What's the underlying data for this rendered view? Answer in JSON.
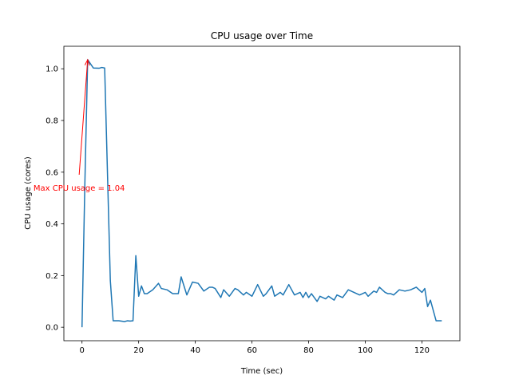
{
  "chart_data": {
    "type": "line",
    "title": "CPU usage over Time",
    "xlabel": "Time (sec)",
    "ylabel": "CPU usage (cores)",
    "xlim": [
      -6.4,
      133.4
    ],
    "ylim": [
      -0.052,
      1.087
    ],
    "xticks": [
      0,
      20,
      40,
      60,
      80,
      100,
      120
    ],
    "xtick_labels": [
      "0",
      "20",
      "40",
      "60",
      "80",
      "100",
      "120"
    ],
    "yticks": [
      0.0,
      0.2,
      0.4,
      0.6,
      0.8,
      1.0
    ],
    "ytick_labels": [
      "0.0",
      "0.2",
      "0.4",
      "0.6",
      "0.8",
      "1.0"
    ],
    "grid": false,
    "series": [
      {
        "name": "CPU usage",
        "color": "#1f77b4",
        "x": [
          0,
          1,
          2,
          4,
          6,
          7,
          8,
          10,
          11,
          13,
          15,
          16,
          17,
          18,
          19,
          20,
          21,
          22,
          23,
          25,
          27,
          28,
          30,
          32,
          34,
          35,
          37,
          39,
          41,
          43,
          45,
          46,
          47,
          49,
          50,
          52,
          54,
          55,
          57,
          58,
          60,
          62,
          64,
          65,
          67,
          68,
          70,
          71,
          73,
          75,
          76,
          77,
          78,
          79,
          80,
          81,
          83,
          84,
          86,
          87,
          89,
          90,
          92,
          94,
          96,
          98,
          99,
          100,
          101,
          103,
          104,
          105,
          107,
          108,
          109,
          110,
          112,
          114,
          116,
          118,
          120,
          121,
          122,
          123,
          125,
          127
        ],
        "values": [
          0.0,
          0.55,
          1.035,
          1.003,
          1.002,
          1.005,
          1.003,
          0.18,
          0.025,
          0.025,
          0.022,
          0.025,
          0.024,
          0.025,
          0.277,
          0.12,
          0.16,
          0.13,
          0.13,
          0.145,
          0.17,
          0.15,
          0.145,
          0.13,
          0.13,
          0.195,
          0.125,
          0.175,
          0.17,
          0.14,
          0.155,
          0.155,
          0.15,
          0.115,
          0.145,
          0.12,
          0.15,
          0.145,
          0.125,
          0.135,
          0.12,
          0.165,
          0.12,
          0.13,
          0.16,
          0.12,
          0.135,
          0.125,
          0.165,
          0.125,
          0.13,
          0.135,
          0.115,
          0.135,
          0.115,
          0.13,
          0.1,
          0.12,
          0.11,
          0.12,
          0.105,
          0.125,
          0.115,
          0.145,
          0.135,
          0.125,
          0.13,
          0.135,
          0.12,
          0.14,
          0.135,
          0.155,
          0.135,
          0.13,
          0.13,
          0.125,
          0.145,
          0.14,
          0.145,
          0.155,
          0.135,
          0.15,
          0.08,
          0.105,
          0.025,
          0.025
        ]
      }
    ],
    "annotation": {
      "text": "Max CPU usage = 1.04",
      "color": "#ff0000",
      "arrow_from": [
        -1,
        0.59
      ],
      "arrow_to": [
        2,
        1.035
      ]
    }
  }
}
